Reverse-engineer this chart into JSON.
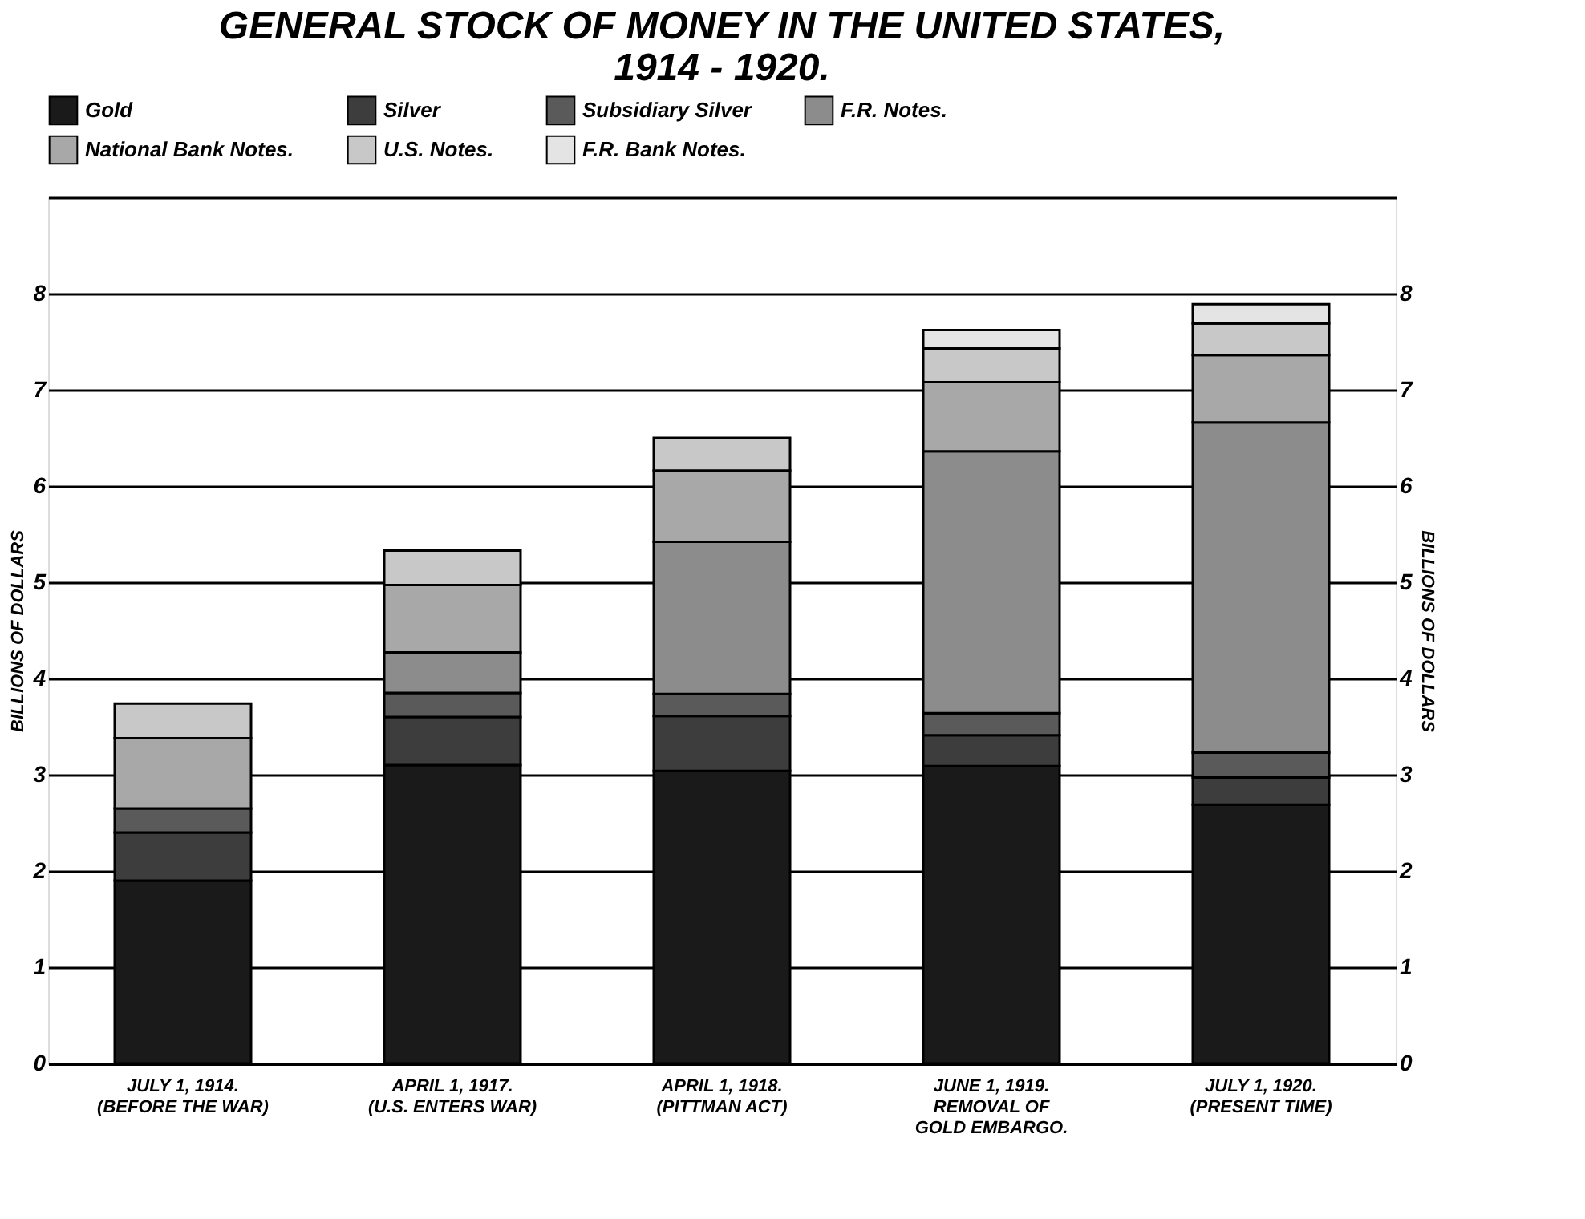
{
  "chart_data": {
    "type": "bar",
    "stacked": true,
    "title": [
      "GENERAL STOCK OF MONEY IN THE UNITED STATES,",
      "1914 - 1920."
    ],
    "ylabel": "BILLIONS OF DOLLARS",
    "y2label": "BILLIONS OF DOLLARS",
    "categories": [
      "JULY 1, 1914.\n(BEFORE THE WAR)",
      "APRIL 1, 1917.\n(U.S. ENTERS WAR)",
      "APRIL 1, 1918.\n(PITTMAN ACT)",
      "JUNE 1, 1919.\nREMOVAL OF\nGOLD EMBARGO.",
      "JULY 1, 1920.\n(PRESENT TIME)"
    ],
    "series": [
      {
        "name": "Gold",
        "color": "#1a1a1a",
        "values": [
          1.9,
          3.1,
          3.04,
          3.09,
          2.69
        ]
      },
      {
        "name": "Silver",
        "color": "#3d3d3d",
        "values": [
          0.5,
          0.5,
          0.57,
          0.32,
          0.28
        ]
      },
      {
        "name": "Subsidiary Silver",
        "color": "#5a5a5a",
        "values": [
          0.25,
          0.25,
          0.23,
          0.23,
          0.26
        ]
      },
      {
        "name": "F.R. Notes.",
        "color": "#8c8c8c",
        "values": [
          null,
          0.42,
          1.58,
          2.72,
          3.43
        ]
      },
      {
        "name": "National Bank Notes.",
        "color": "#a8a8a8",
        "values": [
          0.73,
          0.7,
          0.74,
          0.72,
          0.7
        ]
      },
      {
        "name": "U.S. Notes.",
        "color": "#c8c8c8",
        "values": [
          0.36,
          0.36,
          0.34,
          0.35,
          0.33
        ]
      },
      {
        "name": "F.R. Bank Notes.",
        "color": "#e4e4e4",
        "values": [
          null,
          null,
          null,
          0.19,
          0.2
        ]
      }
    ],
    "ylim": [
      0,
      9
    ],
    "yticks": [
      0,
      1,
      2,
      3,
      4,
      5,
      6,
      7,
      8,
      {
        "value": 9,
        "label": null
      }
    ],
    "y2lim": [
      0,
      9
    ],
    "y2ticks": [
      0,
      1,
      2,
      3,
      4,
      5,
      6,
      7,
      8
    ],
    "grid": "y",
    "legend": "top"
  }
}
